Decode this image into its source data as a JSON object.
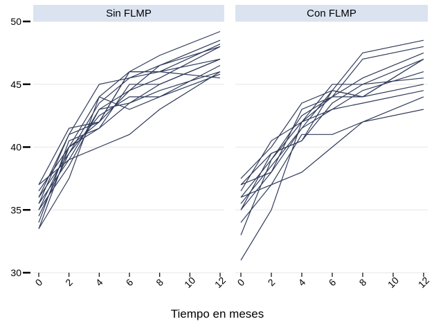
{
  "chart_data": {
    "type": "line",
    "xlabel": "Tiempo en meses",
    "ylim": [
      30,
      50
    ],
    "xlim": [
      0,
      12
    ],
    "yticks": [
      30,
      35,
      40,
      45,
      50
    ],
    "xticks": [
      0,
      2,
      4,
      6,
      8,
      10,
      12
    ],
    "grid": true,
    "line_color": "#2f3a5a",
    "strip_color": "#dbe3f1",
    "panels": [
      {
        "title": "Sin FLMP",
        "series": [
          {
            "x": [
              0,
              2,
              4,
              6,
              8,
              12
            ],
            "y": [
              37.0,
              41.5,
              42.0,
              46.0,
              46.0,
              48.2
            ]
          },
          {
            "x": [
              0,
              2,
              4,
              6,
              8,
              12
            ],
            "y": [
              36.5,
              40.0,
              44.0,
              46.0,
              47.3,
              49.2
            ]
          },
          {
            "x": [
              0,
              2,
              4,
              6,
              8,
              12
            ],
            "y": [
              36.0,
              39.5,
              43.5,
              45.5,
              46.5,
              48.0
            ]
          },
          {
            "x": [
              0,
              2,
              4,
              6,
              8,
              12
            ],
            "y": [
              35.5,
              41.0,
              45.0,
              45.5,
              46.0,
              47.0
            ]
          },
          {
            "x": [
              0,
              2,
              4,
              6,
              8,
              12
            ],
            "y": [
              35.0,
              38.5,
              43.0,
              44.5,
              46.5,
              48.5
            ]
          },
          {
            "x": [
              0,
              2,
              4,
              6,
              8,
              12
            ],
            "y": [
              34.0,
              40.5,
              41.5,
              45.0,
              45.0,
              47.0
            ]
          },
          {
            "x": [
              0,
              2,
              4,
              6,
              8,
              12
            ],
            "y": [
              33.5,
              37.5,
              44.0,
              43.0,
              44.0,
              46.5
            ]
          },
          {
            "x": [
              0,
              2,
              4,
              6,
              8,
              12
            ],
            "y": [
              37.0,
              39.0,
              40.0,
              41.0,
              43.0,
              46.0
            ]
          },
          {
            "x": [
              0,
              2,
              4,
              6,
              8,
              12
            ],
            "y": [
              35.5,
              39.0,
              43.0,
              43.5,
              44.5,
              46.0
            ]
          },
          {
            "x": [
              0,
              2,
              4,
              6,
              8,
              12
            ],
            "y": [
              36.0,
              41.0,
              42.0,
              44.5,
              45.5,
              48.0
            ]
          },
          {
            "x": [
              0,
              2,
              4,
              6,
              8,
              12
            ],
            "y": [
              34.5,
              39.5,
              42.5,
              44.0,
              44.0,
              45.8
            ]
          },
          {
            "x": [
              0,
              2,
              4,
              6,
              8,
              12
            ],
            "y": [
              35.0,
              40.0,
              41.5,
              43.5,
              45.0,
              47.0
            ]
          },
          {
            "x": [
              0,
              2,
              4,
              6,
              8,
              12
            ],
            "y": [
              33.5,
              40.0,
              42.0,
              46.0,
              46.0,
              45.5
            ]
          }
        ]
      },
      {
        "title": "Con FLMP",
        "series": [
          {
            "x": [
              0,
              2,
              4,
              6,
              8,
              12
            ],
            "y": [
              37.5,
              40.0,
              43.5,
              44.5,
              47.5,
              48.5
            ]
          },
          {
            "x": [
              0,
              2,
              4,
              6,
              8,
              12
            ],
            "y": [
              37.0,
              38.0,
              43.0,
              44.0,
              47.0,
              48.0
            ]
          },
          {
            "x": [
              0,
              2,
              4,
              6,
              8,
              12
            ],
            "y": [
              36.5,
              40.5,
              42.0,
              45.0,
              45.0,
              47.0
            ]
          },
          {
            "x": [
              0,
              2,
              4,
              6,
              8,
              12
            ],
            "y": [
              36.0,
              39.0,
              42.5,
              44.0,
              45.5,
              47.5
            ]
          },
          {
            "x": [
              0,
              2,
              4,
              6,
              8,
              12
            ],
            "y": [
              35.5,
              38.5,
              41.5,
              43.0,
              44.5,
              46.0
            ]
          },
          {
            "x": [
              0,
              2,
              4,
              6,
              8,
              12
            ],
            "y": [
              35.0,
              39.5,
              40.5,
              44.5,
              44.0,
              45.0
            ]
          },
          {
            "x": [
              0,
              2,
              4,
              6,
              8,
              12
            ],
            "y": [
              33.0,
              39.0,
              42.0,
              44.0,
              44.0,
              47.0
            ]
          },
          {
            "x": [
              0,
              2,
              4,
              6,
              8,
              12
            ],
            "y": [
              31.0,
              35.0,
              42.0,
              43.0,
              43.5,
              44.5
            ]
          },
          {
            "x": [
              0,
              2,
              4,
              6,
              8,
              12
            ],
            "y": [
              34.0,
              37.0,
              38.0,
              40.0,
              42.0,
              43.0
            ]
          },
          {
            "x": [
              0,
              2,
              4,
              6,
              8,
              12
            ],
            "y": [
              36.0,
              37.0,
              41.0,
              41.0,
              42.0,
              44.0
            ]
          },
          {
            "x": [
              0,
              2,
              4,
              6,
              8,
              12
            ],
            "y": [
              35.0,
              38.0,
              41.5,
              44.5,
              44.0,
              47.0
            ]
          },
          {
            "x": [
              0,
              2,
              4,
              6,
              8,
              12
            ],
            "y": [
              37.0,
              39.5,
              40.5,
              43.5,
              45.0,
              45.5
            ]
          }
        ]
      }
    ]
  }
}
